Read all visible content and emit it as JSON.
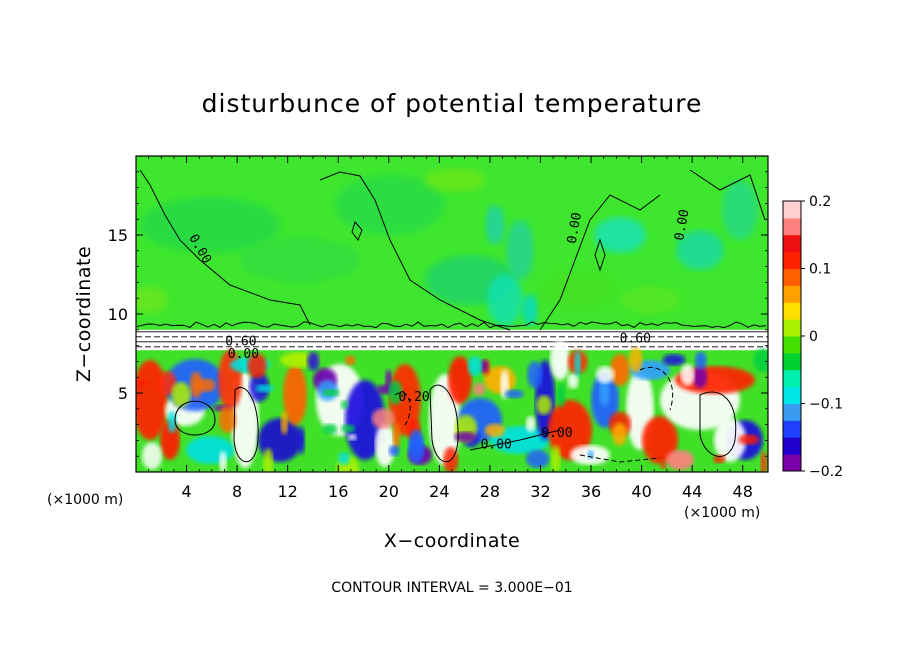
{
  "chart_data": {
    "type": "heatmap",
    "title": "disturbunce of potential temperature",
    "xlabel": "X−coordinate",
    "ylabel": "Z−coordinate",
    "x_unit": "(×1000 m)",
    "x_unit_right": "(×1000 m)",
    "xlim": [
      0,
      50
    ],
    "ylim": [
      0,
      20
    ],
    "x_ticks": [
      "4",
      "8",
      "12",
      "16",
      "20",
      "24",
      "28",
      "32",
      "36",
      "40",
      "44",
      "48"
    ],
    "x_tick_values": [
      4,
      8,
      12,
      16,
      20,
      24,
      28,
      32,
      36,
      40,
      44,
      48
    ],
    "y_ticks": [
      "5",
      "10",
      "15"
    ],
    "y_tick_values": [
      5,
      10,
      15
    ],
    "colorbar": {
      "range": [
        -0.2,
        0.2
      ],
      "tick_labels": [
        "0.2",
        "0.1",
        "0",
        "−0.1",
        "−0.2"
      ],
      "tick_values": [
        0.2,
        0.1,
        0,
        -0.1,
        -0.2
      ],
      "colors": [
        "#7a00a8",
        "#1f00cc",
        "#2040ff",
        "#3a9cf0",
        "#00e6e6",
        "#00f0b0",
        "#00d030",
        "#44e000",
        "#aaf000",
        "#ffe000",
        "#ffa000",
        "#ff6000",
        "#ff2000",
        "#ee1010",
        "#ff8080",
        "#ffd0d0"
      ]
    },
    "contour_labels": [
      {
        "text": "0.00",
        "x": 4.8,
        "z": 14.0
      },
      {
        "text": "0.00",
        "x": 35.0,
        "z": 15.4
      },
      {
        "text": "0.00",
        "x": 43.5,
        "z": 15.6
      },
      {
        "text": "0.60",
        "x": 8.3,
        "z": 8.0
      },
      {
        "text": "0.60",
        "x": 39.5,
        "z": 8.2
      },
      {
        "text": "0.00",
        "x": 8.5,
        "z": 7.2
      },
      {
        "text": "0.00",
        "x": 28.5,
        "z": 1.5
      },
      {
        "text": "0.00",
        "x": 33.3,
        "z": 2.2
      },
      {
        "text": "0.20",
        "x": 22.0,
        "z": 4.5
      }
    ],
    "grid": false,
    "legend": "right colorbar"
  },
  "footer": {
    "contour_interval": "CONTOUR INTERVAL = 3.000E−01"
  }
}
